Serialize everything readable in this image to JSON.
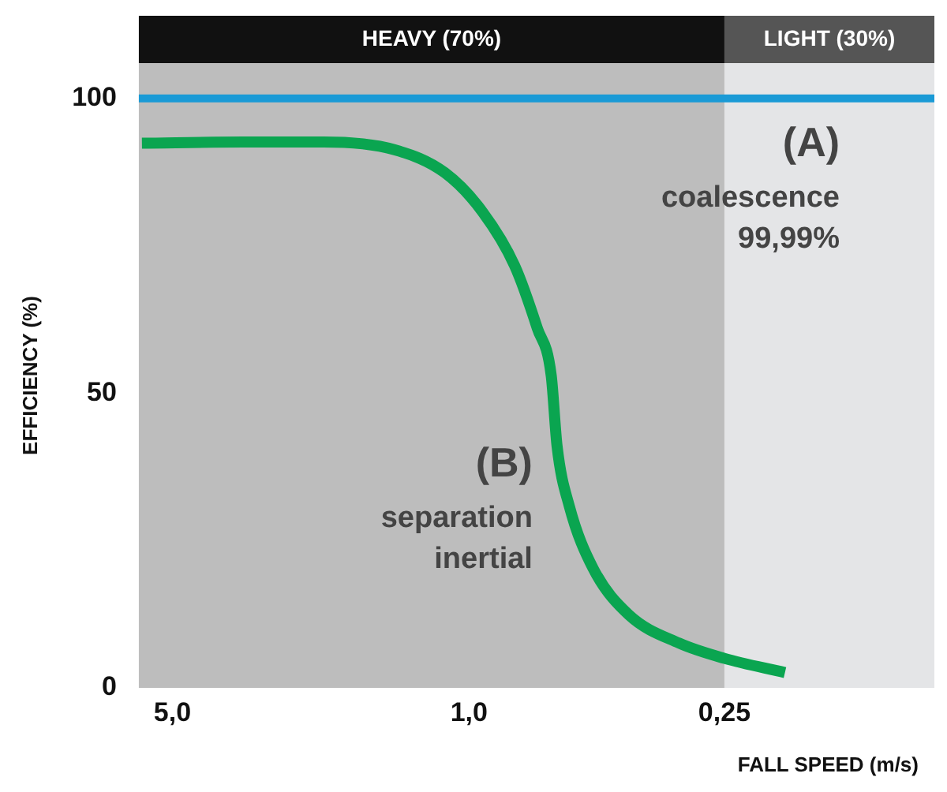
{
  "chart_data": {
    "type": "line",
    "xlabel": "FALL SPEED (m/s)",
    "ylabel": "EFFICIENCY (%)",
    "log": "x",
    "xlim": [
      6,
      0.08
    ],
    "xticks": [
      {
        "value": 5,
        "label": "5,0"
      },
      {
        "value": 1,
        "label": "1,0"
      },
      {
        "value": 0.25,
        "label": "0,25"
      }
    ],
    "ylim": [
      0,
      106
    ],
    "yticks": [
      0,
      50,
      100
    ],
    "grid": false,
    "legend": false,
    "series": [
      {
        "color": "#0aa550",
        "x": [
          5.9,
          3.4,
          2.2,
          1.5,
          1.14,
          0.93,
          0.78,
          0.69,
          0.64,
          0.62,
          0.58,
          0.51,
          0.42,
          0.32,
          0.25,
          0.18
        ],
        "values": [
          92.4,
          92.6,
          92.6,
          91.3,
          87.4,
          80.8,
          71.6,
          61,
          53,
          41,
          30.8,
          20.3,
          12.4,
          7.6,
          5,
          2.6
        ]
      }
    ],
    "ref_lines": [
      {
        "axis": "y",
        "value": 100,
        "color": "#1a9ad6"
      }
    ],
    "bands": [
      {
        "axis": "x",
        "from": 6,
        "to": 0.25,
        "label": "HEAVY (70%)",
        "color": "#bdbdbd"
      },
      {
        "axis": "x",
        "from": 0.25,
        "to": 0.08,
        "label": "LIGHT (30%)",
        "color": "#e4e5e7"
      }
    ],
    "annotations": [
      "(A)",
      "coalescence",
      "99,99%",
      "(B)",
      "separation",
      "inertial"
    ]
  }
}
